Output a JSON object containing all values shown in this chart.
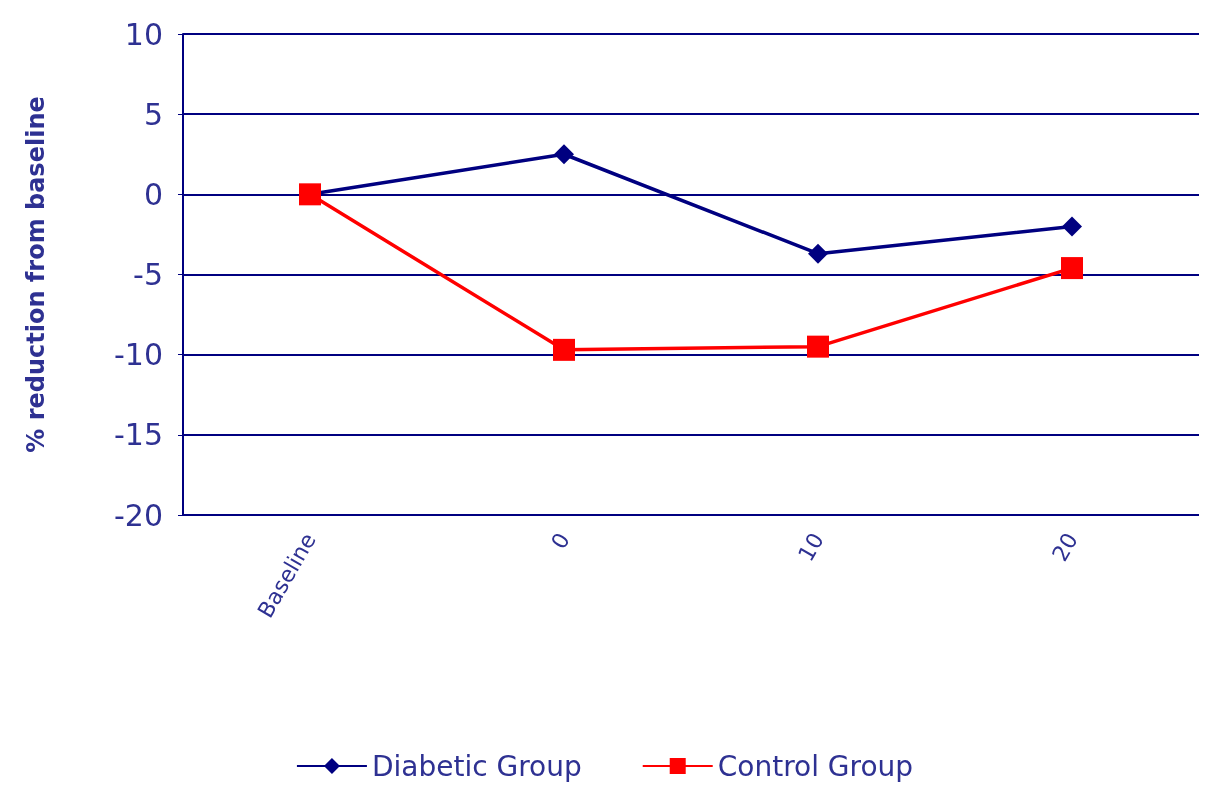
{
  "chart_data": {
    "type": "line",
    "ylabel": "% reduction from baseline",
    "categories": [
      "Baseline",
      "0",
      "10",
      "20"
    ],
    "series": [
      {
        "name": "Diabetic Group",
        "color": "#000080",
        "marker": "diamond",
        "values": [
          0,
          2.5,
          -3.7,
          -2.0
        ]
      },
      {
        "name": "Control Group",
        "color": "#ff0000",
        "marker": "square",
        "values": [
          0,
          -9.7,
          -9.5,
          -4.6
        ]
      }
    ],
    "ylim": [
      -20,
      10
    ],
    "yticks": [
      -20,
      -15,
      -10,
      -5,
      0,
      5,
      10
    ],
    "grid": "y",
    "legend": "bottom"
  }
}
